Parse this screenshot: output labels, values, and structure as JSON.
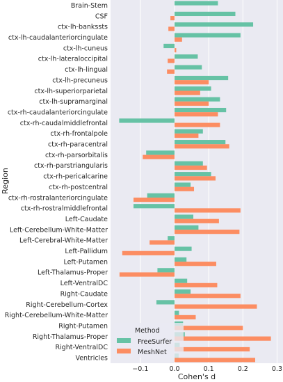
{
  "chart_data": {
    "type": "bar",
    "orientation": "horizontal",
    "xlabel": "Cohen's d",
    "ylabel": "Region",
    "xlim": [
      -0.17,
      0.3
    ],
    "xticks": [
      -0.1,
      0.0,
      0.1,
      0.2,
      0.3
    ],
    "xtick_labels": [
      "−0.1",
      "0.0",
      "0.1",
      "0.2",
      "0.3"
    ],
    "grid": true,
    "background": "#eaeaf2",
    "legend": {
      "title": "Method",
      "placement": "lower-left"
    },
    "categories": [
      "Brain-Stem",
      "CSF",
      "ctx-lh-bankssts",
      "ctx-lh-caudalanteriorcingulate",
      "ctx-lh-cuneus",
      "ctx-lh-lateraloccipital",
      "ctx-lh-lingual",
      "ctx-lh-precuneus",
      "ctx-lh-superiorparietal",
      "ctx-lh-supramarginal",
      "ctx-rh-caudalanteriorcingulate",
      "ctx-rh-caudalmiddlefrontal",
      "ctx-rh-frontalpole",
      "ctx-rh-paracentral",
      "ctx-rh-parsorbitalis",
      "ctx-rh-parstriangularis",
      "ctx-rh-pericalcarine",
      "ctx-rh-postcentral",
      "ctx-rh-rostralanteriorcingulate",
      "ctx-rh-rostralmiddlefrontal",
      "Left-Caudate",
      "Left-Cerebellum-White-Matter",
      "Left-Cerebral-White-Matter",
      "Left-Pallidum",
      "Left-Putamen",
      "Left-Thalamus-Proper",
      "Left-VentralDC",
      "Right-Caudate",
      "Right-Cerebellum-Cortex",
      "Right-Cerebellum-White-Matter",
      "Right-Putamen",
      "Right-Thalamus-Proper",
      "Right-VentralDC",
      "Ventricles"
    ],
    "series": [
      {
        "name": "FreeSurfer",
        "color": "#66c2a5",
        "values": [
          0.127,
          0.178,
          0.23,
          0.193,
          -0.032,
          0.068,
          0.08,
          0.157,
          0.107,
          0.133,
          0.151,
          -0.162,
          0.083,
          0.149,
          -0.083,
          0.083,
          0.107,
          0.047,
          -0.08,
          -0.12,
          0.055,
          0.07,
          -0.02,
          0.05,
          0.035,
          -0.05,
          0.037,
          0.047,
          -0.053,
          0.013,
          0.025,
          0.03,
          0.015,
          0.012
        ]
      },
      {
        "name": "MeshNet",
        "color": "#fc8d62",
        "values": [
          0.0,
          -0.012,
          -0.018,
          0.022,
          0.005,
          -0.02,
          -0.022,
          0.1,
          0.075,
          0.1,
          0.127,
          0.133,
          0.07,
          0.16,
          -0.093,
          0.095,
          0.12,
          0.057,
          -0.12,
          0.193,
          0.13,
          0.19,
          -0.073,
          -0.153,
          0.122,
          -0.161,
          0.125,
          0.193,
          0.241,
          0.062,
          0.2,
          0.282,
          0.22,
          0.236
        ]
      }
    ]
  }
}
